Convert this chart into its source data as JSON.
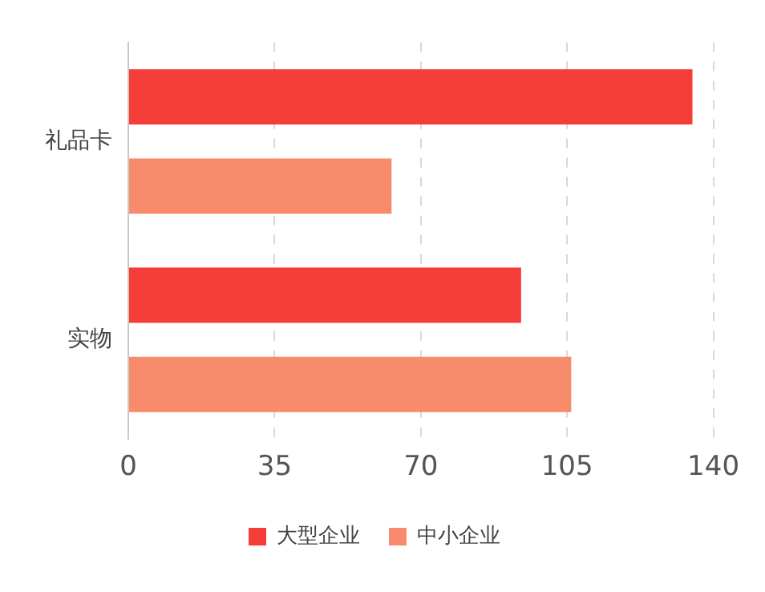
{
  "chart_data": {
    "type": "bar",
    "orientation": "horizontal",
    "categories": [
      "礼品卡",
      "实物"
    ],
    "series": [
      {
        "name": "大型企业",
        "color": "#f43d37",
        "values": [
          135,
          94
        ]
      },
      {
        "name": "中小企业",
        "color": "#f98b6d",
        "values": [
          63,
          106
        ]
      }
    ],
    "xlim": [
      0,
      140
    ],
    "xticks": [
      0,
      35,
      70,
      105,
      140
    ],
    "grid": "x",
    "legend": "bottom"
  }
}
